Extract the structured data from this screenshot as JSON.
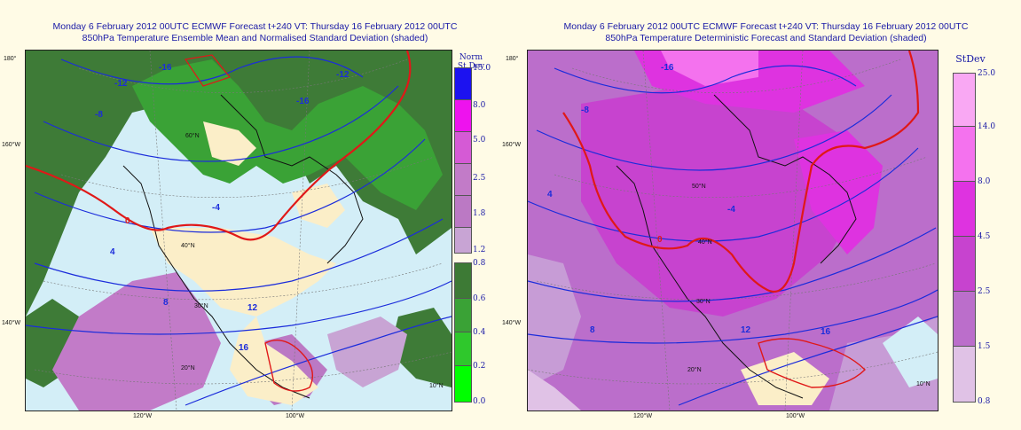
{
  "left_panel": {
    "title_line1": "Monday 6 February 2012 00UTC ECMWF Forecast t+240  VT: Thursday 16 February 2012 00UTC",
    "title_line2": "850hPa Temperature Ensemble Mean and Normalised Standard Deviation (shaded)",
    "legend_title": "Norm St.Dev",
    "legend_upper": [
      {
        "label": "15.0",
        "color": "#1c12f0"
      },
      {
        "label": "8.0",
        "color": "#ee12ee"
      },
      {
        "label": "5.0",
        "color": "#d55ad5"
      },
      {
        "label": "2.5",
        "color": "#c27bc8"
      },
      {
        "label": "1.8",
        "color": "#bb79c4"
      },
      {
        "label": "1.2",
        "color": "#c8a4d4"
      }
    ],
    "legend_lower": [
      {
        "label": "0.8",
        "color": "#3d7a35"
      },
      {
        "label": "0.6",
        "color": "#3aa236"
      },
      {
        "label": "0.4",
        "color": "#2fc82c"
      },
      {
        "label": "0.2",
        "color": "#19e616"
      },
      {
        "label": "0.0",
        "color": "#00ff00"
      }
    ],
    "lat_labels": [
      "160°W",
      "140°W",
      "180°"
    ],
    "lon_labels": [
      "120°W",
      "100°W"
    ],
    "grid_labels": [
      "60°N",
      "50°N",
      "40°N",
      "30°N",
      "20°N",
      "10°N"
    ],
    "contour_labels": [
      "-16",
      "-12",
      "-8",
      "-4",
      "0",
      "4",
      "8",
      "12",
      "16",
      "-12",
      "-16"
    ]
  },
  "right_panel": {
    "title_line1": "Monday 6 February 2012 00UTC ECMWF Forecast t+240  VT: Thursday 16 February 2012 00UTC",
    "title_line2": "850hPa Temperature Deterministic Forecast and Standard Deviation (shaded)",
    "legend_title": "StDev",
    "legend": [
      {
        "label": "25.0",
        "color": "#f9a8f3"
      },
      {
        "label": "14.0",
        "color": "#f472ee"
      },
      {
        "label": "8.0",
        "color": "#de33e0"
      },
      {
        "label": "4.5",
        "color": "#c743cf"
      },
      {
        "label": "2.5",
        "color": "#bb6ecb"
      },
      {
        "label": "1.5",
        "color": "#c79cd6"
      },
      {
        "label": "0.8",
        "color": "#e0c2e6"
      }
    ],
    "lat_labels": [
      "160°W",
      "140°W",
      "180°"
    ],
    "lon_labels": [
      "120°W",
      "100°W"
    ],
    "grid_labels": [
      "50°N",
      "40°N",
      "30°N",
      "20°N",
      "10°N"
    ],
    "contour_labels": [
      "-16",
      "-8",
      "-4",
      "0",
      "4",
      "8",
      "12",
      "16"
    ]
  }
}
